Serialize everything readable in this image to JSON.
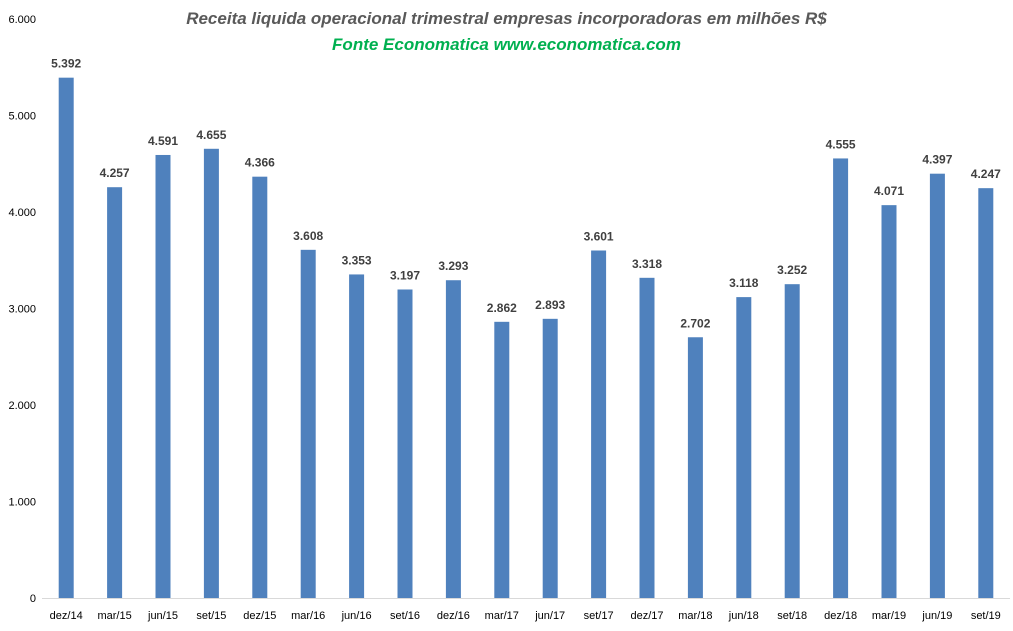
{
  "chart_data": {
    "type": "bar",
    "title": "Receita liquida operacional trimestral empresas incorporadoras em milhões R$",
    "subtitle": "Fonte Economatica www.economatica.com",
    "subtitle_color": "#00B050",
    "bar_color": "#4F81BD",
    "xlabel": "",
    "ylabel": "",
    "ylim": [
      0,
      6000
    ],
    "yticks": [
      {
        "value": 0,
        "label": "0"
      },
      {
        "value": 1000,
        "label": "1.000"
      },
      {
        "value": 2000,
        "label": "2.000"
      },
      {
        "value": 3000,
        "label": "3.000"
      },
      {
        "value": 4000,
        "label": "4.000"
      },
      {
        "value": 5000,
        "label": "5.000"
      },
      {
        "value": 6000,
        "label": "6.000"
      }
    ],
    "grid": false,
    "legend": "none",
    "categories": [
      "dez/14",
      "mar/15",
      "jun/15",
      "set/15",
      "dez/15",
      "mar/16",
      "jun/16",
      "set/16",
      "dez/16",
      "mar/17",
      "jun/17",
      "set/17",
      "dez/17",
      "mar/18",
      "jun/18",
      "set/18",
      "dez/18",
      "mar/19",
      "jun/19",
      "set/19"
    ],
    "values": [
      5392,
      4257,
      4591,
      4655,
      4366,
      3608,
      3353,
      3197,
      3293,
      2862,
      2893,
      3601,
      3318,
      2702,
      3118,
      3252,
      4555,
      4071,
      4397,
      4247
    ],
    "data_labels": [
      "5.392",
      "4.257",
      "4.591",
      "4.655",
      "4.366",
      "3.608",
      "3.353",
      "3.197",
      "3.293",
      "2.862",
      "2.893",
      "3.601",
      "3.318",
      "2.702",
      "3.118",
      "3.252",
      "4.555",
      "4.071",
      "4.397",
      "4.247"
    ]
  }
}
